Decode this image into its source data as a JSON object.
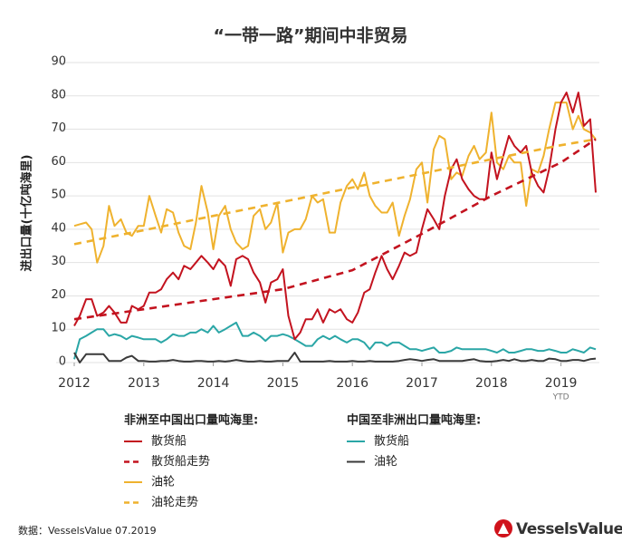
{
  "chart_data": {
    "type": "line",
    "title": "“一带一路”期间中非贸易",
    "y_label": "进出口量(十亿吨海里)",
    "annotation": "YTD",
    "source": "数据：VesselsValue 07.2019",
    "logo": "VesselsValue",
    "xlim": [
      2012,
      2019.5
    ],
    "xticks": [
      2012,
      2013,
      2014,
      2015,
      2016,
      2017,
      2018,
      2019
    ],
    "ylim": [
      0,
      90
    ],
    "yticks": [
      0,
      10,
      20,
      30,
      40,
      50,
      60,
      70,
      80,
      90
    ],
    "grid": true,
    "legend_groups": [
      "非洲至中国出口量吨海里:",
      "中国至非洲出口量吨海里:"
    ],
    "x": [
      2012,
      2012.08,
      2012.17,
      2012.25,
      2012.33,
      2012.42,
      2012.5,
      2012.58,
      2012.67,
      2012.75,
      2012.83,
      2012.92,
      2013,
      2013.08,
      2013.17,
      2013.25,
      2013.33,
      2013.42,
      2013.5,
      2013.58,
      2013.67,
      2013.75,
      2013.83,
      2013.92,
      2014,
      2014.08,
      2014.17,
      2014.25,
      2014.33,
      2014.42,
      2014.5,
      2014.58,
      2014.67,
      2014.75,
      2014.83,
      2014.92,
      2015,
      2015.08,
      2015.17,
      2015.25,
      2015.33,
      2015.42,
      2015.5,
      2015.58,
      2015.67,
      2015.75,
      2015.83,
      2015.92,
      2016,
      2016.08,
      2016.17,
      2016.25,
      2016.33,
      2016.42,
      2016.5,
      2016.58,
      2016.67,
      2016.75,
      2016.83,
      2016.92,
      2017,
      2017.08,
      2017.17,
      2017.25,
      2017.33,
      2017.42,
      2017.5,
      2017.58,
      2017.67,
      2017.75,
      2017.83,
      2017.92,
      2018,
      2018.08,
      2018.17,
      2018.25,
      2018.33,
      2018.42,
      2018.5,
      2018.58,
      2018.67,
      2018.75,
      2018.83,
      2018.92,
      2019,
      2019.08,
      2019.17,
      2019.25,
      2019.33,
      2019.42,
      2019.5
    ],
    "series": [
      {
        "name": "散货船",
        "color": "#c3131f",
        "group": 0,
        "dashed": false,
        "values": [
          11,
          14,
          19,
          19,
          14,
          15,
          17,
          15,
          12,
          12,
          17,
          16,
          17,
          21,
          21,
          22,
          25,
          27,
          25,
          29,
          28,
          30,
          32,
          30,
          28,
          31,
          29,
          23,
          31,
          32,
          31,
          27,
          24,
          18,
          24,
          25,
          28,
          14,
          7,
          9,
          13,
          13,
          16,
          12,
          16,
          15,
          16,
          13,
          12,
          15,
          21,
          22,
          27,
          32,
          28,
          25,
          29,
          33,
          32,
          33,
          40,
          46,
          43,
          40,
          50,
          58,
          61,
          55,
          52,
          50,
          49,
          49,
          63,
          55,
          62,
          68,
          65,
          63,
          65,
          57,
          53,
          51,
          58,
          70,
          78,
          81,
          75,
          81,
          71,
          73,
          51
        ]
      },
      {
        "name": "散货船走势",
        "color": "#c3131f",
        "group": 0,
        "dashed": true,
        "x": [
          2012,
          2013,
          2014,
          2015,
          2016,
          2017,
          2018,
          2019,
          2019.5
        ],
        "values": [
          13,
          16,
          19,
          22,
          27.7,
          38.6,
          50,
          60,
          67
        ]
      },
      {
        "name": "油轮",
        "color": "#efb22e",
        "group": 0,
        "dashed": false,
        "values": [
          41,
          41.5,
          42,
          40,
          30,
          35,
          47,
          41,
          43,
          39,
          38,
          41,
          41,
          50,
          44,
          39,
          46,
          45,
          39,
          35,
          34,
          42,
          53,
          45,
          34,
          44,
          47,
          40,
          36,
          34,
          35,
          44,
          46,
          40,
          42,
          48,
          33,
          39,
          40,
          40,
          43,
          50,
          48,
          49,
          39,
          39,
          48,
          53,
          55,
          52,
          57,
          50,
          47,
          45,
          45,
          48,
          38,
          44,
          49,
          58,
          60,
          48,
          64,
          68,
          67,
          55,
          57,
          56,
          62,
          65,
          61,
          63,
          75,
          60,
          58,
          62,
          60,
          60,
          47,
          58,
          57,
          62,
          70,
          78,
          78,
          78,
          70,
          74,
          70,
          69,
          67
        ]
      },
      {
        "name": "油轮走势",
        "color": "#efb22e",
        "group": 0,
        "dashed": true,
        "x": [
          2012,
          2013,
          2014,
          2015,
          2016,
          2017,
          2018,
          2019,
          2019.5
        ],
        "values": [
          35.5,
          39.7,
          44,
          48.2,
          52.5,
          56.7,
          61,
          65.2,
          67
        ]
      },
      {
        "name": "散货船",
        "color": "#2aa6a6",
        "group": 1,
        "dashed": false,
        "values": [
          1,
          7,
          8,
          9,
          10,
          10,
          8,
          8.5,
          8,
          7,
          8,
          7.5,
          7,
          7,
          7,
          6,
          7,
          8.5,
          8,
          8,
          9,
          9,
          10,
          9,
          11,
          9,
          10,
          11,
          12,
          8,
          8,
          9,
          8,
          6.5,
          8,
          8,
          8.5,
          8,
          7,
          6,
          5,
          5,
          7,
          8,
          7,
          8,
          7,
          6,
          7,
          7,
          6,
          4,
          6,
          6,
          5,
          6,
          6,
          5,
          4,
          4,
          3.5,
          4,
          4.5,
          3,
          3,
          3.5,
          4.5,
          4,
          4,
          4,
          4,
          4,
          3.5,
          3,
          4,
          3,
          3,
          3.5,
          4,
          4,
          3.5,
          3.5,
          4,
          3.5,
          3,
          3,
          4,
          3.5,
          3,
          4.5,
          4
        ]
      },
      {
        "name": "油轮",
        "color": "#3a3a3a",
        "group": 1,
        "dashed": false,
        "values": [
          3,
          0,
          2.5,
          2.5,
          2.5,
          2.5,
          0.5,
          0.5,
          0.5,
          1.5,
          2,
          0.5,
          0.5,
          0.3,
          0.3,
          0.5,
          0.5,
          0.8,
          0.5,
          0.3,
          0.3,
          0.5,
          0.5,
          0.3,
          0.3,
          0.5,
          0.3,
          0.5,
          0.8,
          0.5,
          0.3,
          0.3,
          0.5,
          0.3,
          0.3,
          0.5,
          0.5,
          0.5,
          3,
          0.3,
          0.3,
          0.3,
          0.3,
          0.3,
          0.5,
          0.3,
          0.3,
          0.3,
          0.5,
          0.3,
          0.3,
          0.5,
          0.3,
          0.3,
          0.3,
          0.3,
          0.5,
          0.8,
          1,
          0.8,
          0.5,
          0.8,
          1,
          0.5,
          0.5,
          0.5,
          0.5,
          0.5,
          0.8,
          1,
          0.5,
          0.3,
          0.3,
          0.5,
          0.8,
          0.5,
          1,
          0.5,
          0.5,
          0.8,
          0.5,
          0.5,
          1.2,
          1,
          0.5,
          0.5,
          0.8,
          0.8,
          0.5,
          1,
          1.2
        ]
      }
    ]
  }
}
